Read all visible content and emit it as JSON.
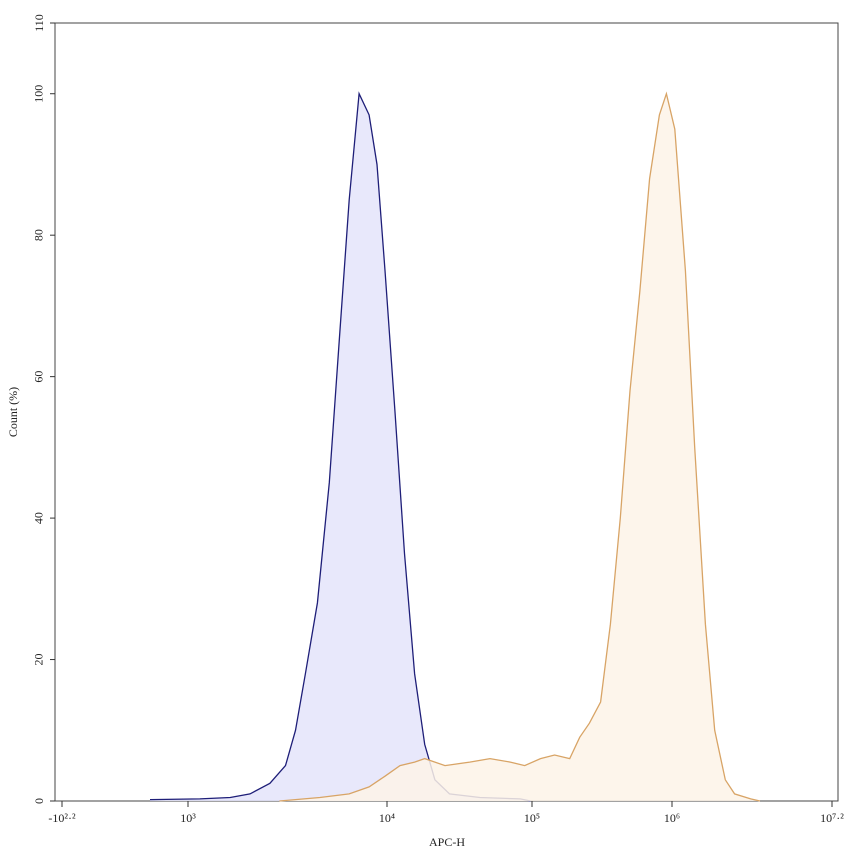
{
  "chart_data": {
    "type": "histogram-overlay",
    "x_label": "APC-H",
    "y_label": "Count (%)",
    "xscale": "biexponential",
    "xlim": [
      -158.49,
      15848932
    ],
    "xticks": [
      {
        "value": -158.49,
        "label": "-10²·²"
      },
      {
        "value": 1000,
        "label": "10³"
      },
      {
        "value": 10000,
        "label": "10⁴"
      },
      {
        "value": 100000,
        "label": "10⁵"
      },
      {
        "value": 1000000,
        "label": "10⁶"
      },
      {
        "value": 15848932,
        "label": "10⁷·²"
      }
    ],
    "ylim": [
      0,
      110
    ],
    "yticks": [
      0,
      20,
      40,
      60,
      80,
      100,
      110
    ],
    "series": [
      {
        "color": "#1e1e78",
        "fill": "#e4e4fa",
        "x": [
          27,
          1148,
          1630,
          2050,
          2580,
          3090,
          3470,
          3890,
          4470,
          5130,
          5750,
          6460,
          7240,
          8130,
          8910,
          9770,
          11350,
          13200,
          15500,
          18200,
          21400,
          27000,
          43700,
          83000,
          97500
        ],
        "values": [
          0.2,
          0.3,
          0.5,
          1,
          2.5,
          5,
          10,
          18,
          28,
          45,
          65,
          85,
          100,
          97,
          90,
          75,
          55,
          35,
          18,
          8,
          3,
          1,
          0.5,
          0.3,
          0
        ]
      },
      {
        "color": "#d8a466",
        "fill": "#fdf3e7",
        "x": [
          2880,
          4600,
          6460,
          8130,
          9770,
          12300,
          15500,
          18200,
          25100,
          37200,
          51300,
          70800,
          89100,
          115000,
          145000,
          186000,
          219000,
          257000,
          309000,
          363000,
          427000,
          501000,
          589000,
          692000,
          813000,
          912000,
          1050000,
          1260000,
          1480000,
          1780000,
          2090000,
          2510000,
          2950000,
          3890000,
          4570000
        ],
        "values": [
          0,
          0.5,
          1,
          2,
          3.5,
          5,
          5.5,
          6,
          5,
          5.5,
          6,
          5.5,
          5,
          6,
          6.5,
          6,
          9,
          11,
          14,
          25,
          40,
          58,
          72,
          88,
          97,
          100,
          95,
          75,
          50,
          25,
          10,
          3,
          1,
          0.3,
          0
        ]
      }
    ]
  }
}
